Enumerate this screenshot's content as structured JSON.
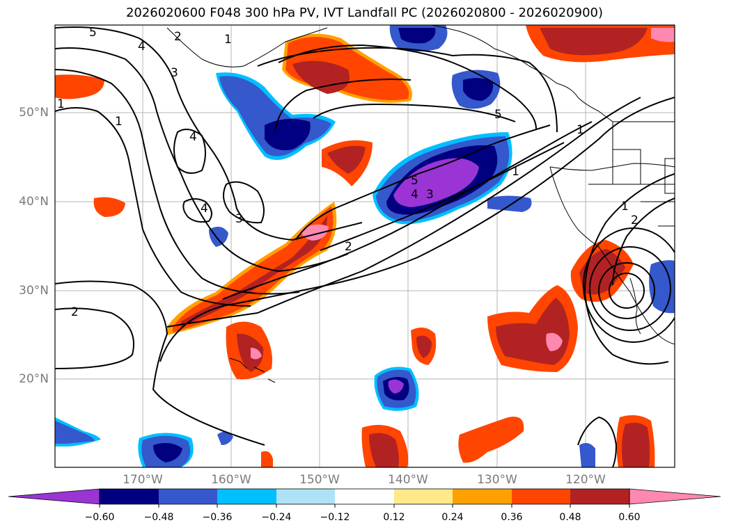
{
  "title": "2026020600 F048 300 hPa PV, IVT Landfall PC (2026020800 - 2026020900)",
  "axes": {
    "lat_labels": [
      "50°N",
      "40°N",
      "30°N",
      "20°N"
    ],
    "lon_labels": [
      "170°W",
      "160°W",
      "150°W",
      "140°W",
      "130°W",
      "120°W"
    ]
  },
  "contour_labels": [
    "5",
    "4",
    "2",
    "1",
    "1",
    "3",
    "4",
    "4",
    "3",
    "2",
    "5",
    "4",
    "3",
    "1",
    "2",
    "1",
    "2",
    "5",
    "1",
    "1"
  ],
  "colorbar": {
    "ticks": [
      "−0.60",
      "−0.48",
      "−0.36",
      "−0.24",
      "−0.12",
      "0.12",
      "0.24",
      "0.36",
      "0.48",
      "0.60"
    ],
    "colors": [
      "#9a34d4",
      "#000080",
      "#3558cc",
      "#00bfff",
      "#aee2f7",
      "#ffffff",
      "#ffe98a",
      "#ffa000",
      "#ff4500",
      "#b22222",
      "#ff88b0",
      "#ff88b0"
    ]
  }
}
